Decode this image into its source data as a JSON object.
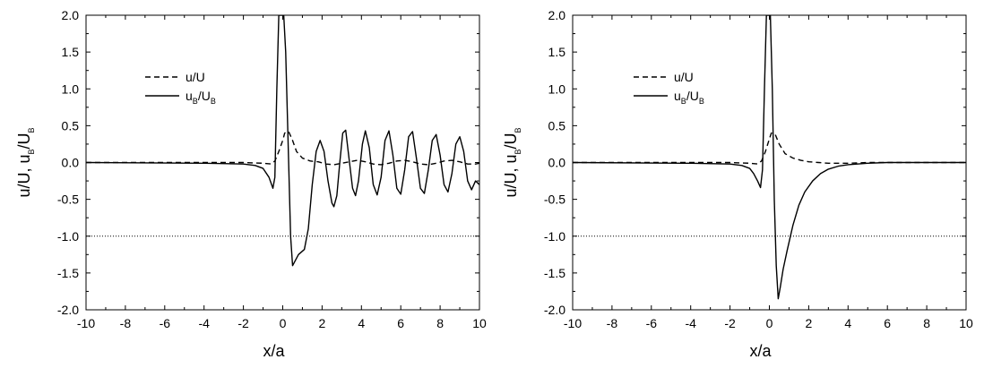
{
  "chart_data": [
    {
      "type": "line",
      "xlabel": "x/a",
      "ylabel_parts": [
        "u/U, u",
        "B",
        "/U",
        "B"
      ],
      "xlim": [
        -10,
        10
      ],
      "ylim": [
        -2.0,
        2.0
      ],
      "x_ticks": [
        "-10",
        "-8",
        "-6",
        "-4",
        "-2",
        "0",
        "2",
        "4",
        "6",
        "8",
        "10"
      ],
      "y_ticks": [
        "-2.0",
        "-1.5",
        "-1.0",
        "-0.5",
        "0.0",
        "0.5",
        "1.0",
        "1.5",
        "2.0"
      ],
      "reference_line_y": -1.0,
      "legend_position": "upper-left",
      "series": [
        {
          "name": "u/U",
          "style": "dashed",
          "points": [
            [
              -10,
              0
            ],
            [
              -6,
              0
            ],
            [
              -2,
              0
            ],
            [
              -1,
              -0.01
            ],
            [
              -0.6,
              -0.02
            ],
            [
              -0.4,
              0.02
            ],
            [
              -0.2,
              0.15
            ],
            [
              0,
              0.3
            ],
            [
              0.1,
              0.4
            ],
            [
              0.3,
              0.42
            ],
            [
              0.5,
              0.3
            ],
            [
              0.7,
              0.15
            ],
            [
              1.0,
              0.06
            ],
            [
              1.4,
              0.02
            ],
            [
              1.8,
              0.01
            ],
            [
              2.2,
              -0.02
            ],
            [
              2.6,
              -0.03
            ],
            [
              3.0,
              -0.01
            ],
            [
              3.4,
              0.01
            ],
            [
              3.8,
              0.03
            ],
            [
              4.2,
              0.01
            ],
            [
              4.6,
              -0.02
            ],
            [
              5.0,
              -0.03
            ],
            [
              5.4,
              -0.01
            ],
            [
              5.8,
              0.02
            ],
            [
              6.2,
              0.03
            ],
            [
              6.6,
              0.01
            ],
            [
              7.0,
              -0.02
            ],
            [
              7.4,
              -0.03
            ],
            [
              7.8,
              -0.01
            ],
            [
              8.2,
              0.02
            ],
            [
              8.6,
              0.03
            ],
            [
              9.0,
              0.01
            ],
            [
              9.4,
              -0.02
            ],
            [
              9.8,
              -0.02
            ],
            [
              10,
              -0.01
            ]
          ]
        },
        {
          "name_parts": [
            "u",
            "B",
            "/U",
            "B"
          ],
          "style": "solid",
          "points": [
            [
              -10,
              0
            ],
            [
              -4,
              -0.01
            ],
            [
              -2,
              -0.02
            ],
            [
              -1.4,
              -0.04
            ],
            [
              -1.0,
              -0.08
            ],
            [
              -0.7,
              -0.2
            ],
            [
              -0.5,
              -0.35
            ],
            [
              -0.4,
              -0.2
            ],
            [
              -0.3,
              1.0
            ],
            [
              -0.2,
              2.0
            ],
            [
              0,
              2.0
            ],
            [
              0.05,
              2.0
            ],
            [
              0.15,
              1.5
            ],
            [
              0.3,
              0.0
            ],
            [
              0.4,
              -1.0
            ],
            [
              0.5,
              -1.4
            ],
            [
              0.6,
              -1.35
            ],
            [
              0.8,
              -1.25
            ],
            [
              1.1,
              -1.18
            ],
            [
              1.3,
              -0.9
            ],
            [
              1.5,
              -0.3
            ],
            [
              1.7,
              0.15
            ],
            [
              1.9,
              0.3
            ],
            [
              2.1,
              0.15
            ],
            [
              2.3,
              -0.25
            ],
            [
              2.5,
              -0.55
            ],
            [
              2.6,
              -0.6
            ],
            [
              2.75,
              -0.45
            ],
            [
              2.9,
              0.0
            ],
            [
              3.05,
              0.4
            ],
            [
              3.2,
              0.44
            ],
            [
              3.35,
              0.1
            ],
            [
              3.55,
              -0.35
            ],
            [
              3.7,
              -0.45
            ],
            [
              3.85,
              -0.25
            ],
            [
              4.05,
              0.25
            ],
            [
              4.2,
              0.43
            ],
            [
              4.4,
              0.2
            ],
            [
              4.6,
              -0.3
            ],
            [
              4.8,
              -0.44
            ],
            [
              5.0,
              -0.2
            ],
            [
              5.2,
              0.3
            ],
            [
              5.4,
              0.43
            ],
            [
              5.6,
              0.1
            ],
            [
              5.8,
              -0.35
            ],
            [
              6.0,
              -0.43
            ],
            [
              6.2,
              -0.1
            ],
            [
              6.4,
              0.35
            ],
            [
              6.6,
              0.42
            ],
            [
              6.8,
              0.05
            ],
            [
              7.0,
              -0.35
            ],
            [
              7.2,
              -0.42
            ],
            [
              7.4,
              -0.1
            ],
            [
              7.6,
              0.3
            ],
            [
              7.8,
              0.38
            ],
            [
              8.0,
              0.1
            ],
            [
              8.2,
              -0.3
            ],
            [
              8.4,
              -0.4
            ],
            [
              8.6,
              -0.15
            ],
            [
              8.8,
              0.25
            ],
            [
              9.0,
              0.35
            ],
            [
              9.2,
              0.15
            ],
            [
              9.4,
              -0.25
            ],
            [
              9.6,
              -0.37
            ],
            [
              9.8,
              -0.25
            ],
            [
              10,
              -0.3
            ]
          ]
        }
      ]
    },
    {
      "type": "line",
      "xlabel": "x/a",
      "ylabel_parts": [
        "u/U, u",
        "B",
        "/U",
        "B"
      ],
      "xlim": [
        -10,
        10
      ],
      "ylim": [
        -2.0,
        2.0
      ],
      "x_ticks": [
        "-10",
        "-8",
        "-6",
        "-4",
        "-2",
        "0",
        "2",
        "4",
        "6",
        "8",
        "10"
      ],
      "y_ticks": [
        "-2.0",
        "-1.5",
        "-1.0",
        "-0.5",
        "0.0",
        "0.5",
        "1.0",
        "1.5",
        "2.0"
      ],
      "reference_line_y": -1.0,
      "legend_position": "upper-left",
      "series": [
        {
          "name": "u/U",
          "style": "dashed",
          "points": [
            [
              -10,
              0
            ],
            [
              -6,
              0
            ],
            [
              -2,
              0
            ],
            [
              -1,
              -0.01
            ],
            [
              -0.6,
              -0.02
            ],
            [
              -0.4,
              0.02
            ],
            [
              -0.2,
              0.15
            ],
            [
              0,
              0.32
            ],
            [
              0.1,
              0.4
            ],
            [
              0.3,
              0.38
            ],
            [
              0.5,
              0.25
            ],
            [
              0.8,
              0.12
            ],
            [
              1.2,
              0.06
            ],
            [
              1.6,
              0.03
            ],
            [
              2.0,
              0.01
            ],
            [
              2.5,
              0.0
            ],
            [
              3.0,
              -0.01
            ],
            [
              4.0,
              -0.01
            ],
            [
              5.0,
              0.0
            ],
            [
              10,
              0
            ]
          ]
        },
        {
          "name_parts": [
            "u",
            "B",
            "/U",
            "B"
          ],
          "style": "solid",
          "points": [
            [
              -10,
              0
            ],
            [
              -4,
              -0.01
            ],
            [
              -2,
              -0.02
            ],
            [
              -1.4,
              -0.04
            ],
            [
              -1.0,
              -0.08
            ],
            [
              -0.8,
              -0.15
            ],
            [
              -0.6,
              -0.25
            ],
            [
              -0.45,
              -0.34
            ],
            [
              -0.35,
              -0.1
            ],
            [
              -0.25,
              1.0
            ],
            [
              -0.15,
              2.0
            ],
            [
              0.05,
              2.0
            ],
            [
              0.15,
              1.0
            ],
            [
              0.25,
              -0.5
            ],
            [
              0.35,
              -1.4
            ],
            [
              0.45,
              -1.85
            ],
            [
              0.55,
              -1.7
            ],
            [
              0.7,
              -1.45
            ],
            [
              0.9,
              -1.2
            ],
            [
              1.2,
              -0.85
            ],
            [
              1.5,
              -0.58
            ],
            [
              1.8,
              -0.4
            ],
            [
              2.2,
              -0.25
            ],
            [
              2.6,
              -0.15
            ],
            [
              3.0,
              -0.09
            ],
            [
              3.5,
              -0.05
            ],
            [
              4.0,
              -0.03
            ],
            [
              5.0,
              -0.01
            ],
            [
              6.0,
              0
            ],
            [
              10,
              0
            ]
          ]
        }
      ]
    }
  ]
}
